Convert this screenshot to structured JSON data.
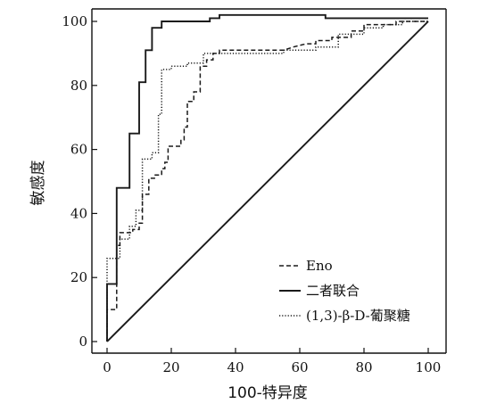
{
  "chart_data": {
    "type": "line",
    "xlabel": "100-特异度",
    "ylabel": "敏感度",
    "xlim": [
      0,
      100
    ],
    "ylim": [
      0,
      100
    ],
    "x_ticks": [
      "0",
      "20",
      "40",
      "60",
      "80",
      "100"
    ],
    "y_ticks": [
      "0",
      "20",
      "40",
      "60",
      "80",
      "100"
    ],
    "grid": false,
    "legend_position": "bottom-right",
    "series": [
      {
        "name": "Eno",
        "line_style": "dashed",
        "color": "#1a1a1a",
        "points": [
          [
            0,
            0
          ],
          [
            0,
            10
          ],
          [
            3,
            10
          ],
          [
            3,
            30
          ],
          [
            4,
            30
          ],
          [
            4,
            34
          ],
          [
            8,
            34
          ],
          [
            8,
            35
          ],
          [
            10,
            35
          ],
          [
            10,
            37
          ],
          [
            11,
            37
          ],
          [
            11,
            46
          ],
          [
            13,
            46
          ],
          [
            13,
            51
          ],
          [
            15,
            51
          ],
          [
            15,
            52
          ],
          [
            17,
            52
          ],
          [
            17,
            54
          ],
          [
            18,
            54
          ],
          [
            18,
            56
          ],
          [
            19,
            56
          ],
          [
            19,
            61
          ],
          [
            23,
            61
          ],
          [
            23,
            63
          ],
          [
            24,
            63
          ],
          [
            24,
            67
          ],
          [
            25,
            67
          ],
          [
            25,
            75
          ],
          [
            27,
            75
          ],
          [
            27,
            78
          ],
          [
            29,
            78
          ],
          [
            29,
            86
          ],
          [
            31,
            86
          ],
          [
            31,
            88
          ],
          [
            33,
            88
          ],
          [
            33,
            90
          ],
          [
            35,
            90
          ],
          [
            35,
            91
          ],
          [
            55,
            91
          ],
          [
            58,
            92
          ],
          [
            62,
            93
          ],
          [
            65,
            93
          ],
          [
            65,
            94
          ],
          [
            70,
            94
          ],
          [
            70,
            95
          ],
          [
            76,
            95
          ],
          [
            76,
            97
          ],
          [
            80,
            97
          ],
          [
            80,
            99
          ],
          [
            90,
            99
          ],
          [
            90,
            100
          ],
          [
            100,
            100
          ]
        ]
      },
      {
        "name": "二者联合",
        "line_style": "solid",
        "color": "#1a1a1a",
        "points": [
          [
            0,
            0
          ],
          [
            0,
            18
          ],
          [
            3,
            18
          ],
          [
            3,
            48
          ],
          [
            7,
            48
          ],
          [
            7,
            65
          ],
          [
            10,
            65
          ],
          [
            10,
            81
          ],
          [
            12,
            81
          ],
          [
            12,
            91
          ],
          [
            14,
            91
          ],
          [
            14,
            98
          ],
          [
            17,
            98
          ],
          [
            17,
            100
          ],
          [
            32,
            100
          ],
          [
            32,
            101
          ],
          [
            35,
            101
          ],
          [
            35,
            102
          ],
          [
            68,
            102
          ],
          [
            68,
            101
          ],
          [
            100,
            101
          ]
        ]
      },
      {
        "name": "(1,3)-β-D-葡聚糖",
        "line_style": "dotted",
        "color": "#1a1a1a",
        "points": [
          [
            0,
            0
          ],
          [
            0,
            26
          ],
          [
            4,
            26
          ],
          [
            4,
            32
          ],
          [
            7,
            32
          ],
          [
            7,
            36
          ],
          [
            9,
            36
          ],
          [
            9,
            41
          ],
          [
            11,
            41
          ],
          [
            11,
            57
          ],
          [
            14,
            57
          ],
          [
            14,
            59
          ],
          [
            16,
            59
          ],
          [
            16,
            71
          ],
          [
            17,
            71
          ],
          [
            17,
            85
          ],
          [
            20,
            85
          ],
          [
            20,
            86
          ],
          [
            25,
            86
          ],
          [
            25,
            87
          ],
          [
            30,
            87
          ],
          [
            30,
            90
          ],
          [
            55,
            90
          ],
          [
            55,
            91
          ],
          [
            65,
            91
          ],
          [
            65,
            92
          ],
          [
            72,
            92
          ],
          [
            72,
            96
          ],
          [
            80,
            96
          ],
          [
            80,
            98
          ],
          [
            86,
            98
          ],
          [
            86,
            99
          ],
          [
            92,
            99
          ],
          [
            92,
            100
          ],
          [
            100,
            100
          ]
        ]
      },
      {
        "name": "",
        "line_style": "solid",
        "color": "#1a1a1a",
        "points": [
          [
            0,
            0
          ],
          [
            100,
            100
          ]
        ]
      }
    ]
  }
}
